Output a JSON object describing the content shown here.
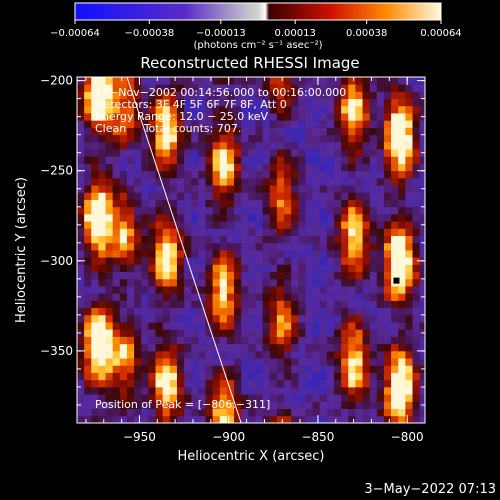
{
  "chart_data": {
    "type": "heatmap",
    "title": "Reconstructed RHESSI Image",
    "xlabel": "Heliocentric X (arcsec)",
    "ylabel": "Heliocentric Y (arcsec)",
    "xlim": [
      -985,
      -790
    ],
    "ylim": [
      -390,
      -198
    ],
    "x_ticks": [
      -950,
      -900,
      -850,
      -800
    ],
    "x_tick_labels": [
      "−950",
      "−900",
      "−850",
      "−800"
    ],
    "y_ticks": [
      -200,
      -250,
      -300,
      -350
    ],
    "y_tick_labels": [
      "−200",
      "−250",
      "−300",
      "−350"
    ],
    "colorbar": {
      "range": [
        -0.00064,
        0.00064
      ],
      "ticks": [
        -0.00064,
        -0.00038,
        -0.00013,
        0.00013,
        0.00038,
        0.00064
      ],
      "tick_labels": [
        "−0.00064",
        "−0.00038",
        "−0.00013",
        "0.00013",
        "0.00038",
        "0.00064"
      ],
      "unit_label": "(photons cm⁻² s⁻¹ asec⁻²)"
    },
    "annotations": [
      "17−Nov−2002 00:14:56.000 to 00:16:00.000",
      "Detectors: 3F 4F 5F 6F 7F 8F, Att 0",
      "Energy Range: 12.0 − 25.0 keV",
      "Clean     Total counts: 707."
    ],
    "peak_label": "Position of Peak = [−806,−311]",
    "peak": [
      -806,
      -311
    ],
    "limb_line": [
      [
        -957,
        -198
      ],
      [
        -893,
        -390
      ]
    ],
    "bright_ridges": [
      {
        "x": -975,
        "y_range": [
          -390,
          -198
        ],
        "intensity": 0.95
      },
      {
        "x": -960,
        "y_range": [
          -390,
          -198
        ],
        "intensity": 0.55
      },
      {
        "x": -937,
        "y_range": [
          -390,
          -198
        ],
        "intensity": 0.8
      },
      {
        "x": -905,
        "y_range": [
          -390,
          -198
        ],
        "intensity": 0.75
      },
      {
        "x": -872,
        "y_range": [
          -390,
          -198
        ],
        "intensity": 0.55
      },
      {
        "x": -832,
        "y_range": [
          -390,
          -198
        ],
        "intensity": 0.75
      },
      {
        "x": -806,
        "y_range": [
          -390,
          -198
        ],
        "intensity": 1.0
      }
    ]
  },
  "footer": {
    "timestamp": "3−May−2022 07:13"
  }
}
